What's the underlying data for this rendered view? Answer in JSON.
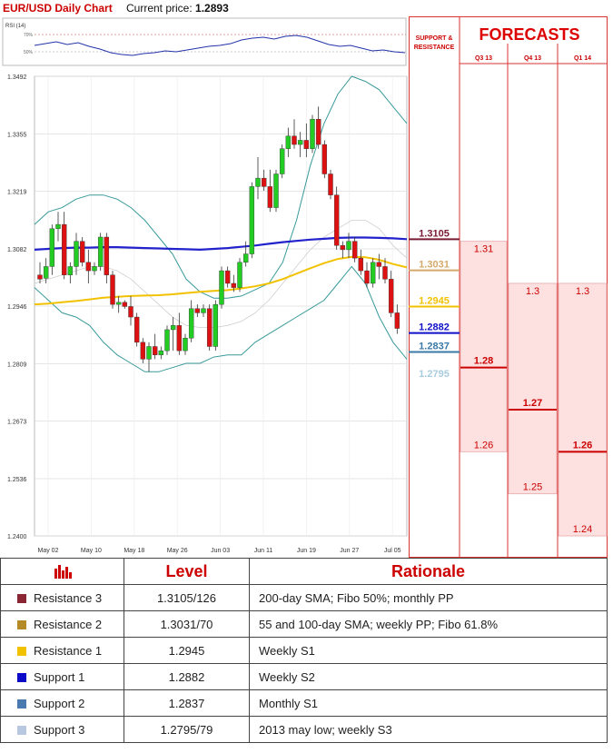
{
  "header": {
    "title": "EUR/USD Daily Chart",
    "current_price_label": "Current price:",
    "current_price": "1.2893"
  },
  "rsi": {
    "label": "RSI (14)",
    "ticks": [
      "70%",
      "50%"
    ]
  },
  "chart_data": [
    {
      "type": "line",
      "panel": "price",
      "title": "EUR/USD Daily Chart",
      "y_ticks": [
        "1.3492",
        "1.3355",
        "1.3219",
        "1.3082",
        "1.2946",
        "1.2809",
        "1.2673",
        "1.2536",
        "1.2400"
      ],
      "ylim": [
        1.24,
        1.3492
      ],
      "x_ticks": [
        "May 02",
        "May 10",
        "May 18",
        "May 26",
        "Jun 03",
        "Jun 11",
        "Jun 19",
        "Jun 27",
        "Jul 05"
      ],
      "grid": true,
      "series_shown": [
        "candlesticks",
        "Bollinger bands",
        "moving average (blue)",
        "moving average (yellow)"
      ],
      "candles_ohlc": [
        [
          1.302,
          1.305,
          1.3,
          1.301
        ],
        [
          1.3012,
          1.306,
          1.3,
          1.304
        ],
        [
          1.304,
          1.314,
          1.302,
          1.313
        ],
        [
          1.313,
          1.317,
          1.31,
          1.314
        ],
        [
          1.314,
          1.317,
          1.301,
          1.302
        ],
        [
          1.302,
          1.305,
          1.3,
          1.304
        ],
        [
          1.304,
          1.312,
          1.302,
          1.31
        ],
        [
          1.31,
          1.311,
          1.304,
          1.305
        ],
        [
          1.305,
          1.308,
          1.3,
          1.303
        ],
        [
          1.303,
          1.305,
          1.302,
          1.304
        ],
        [
          1.304,
          1.312,
          1.303,
          1.311
        ],
        [
          1.311,
          1.312,
          1.3,
          1.302
        ],
        [
          1.302,
          1.303,
          1.294,
          1.295
        ],
        [
          1.295,
          1.297,
          1.293,
          1.2955
        ],
        [
          1.2955,
          1.296,
          1.294,
          1.2945
        ],
        [
          1.2945,
          1.297,
          1.29,
          1.292
        ],
        [
          1.292,
          1.293,
          1.285,
          1.286
        ],
        [
          1.286,
          1.287,
          1.281,
          1.282
        ],
        [
          1.282,
          1.286,
          1.279,
          1.285
        ],
        [
          1.285,
          1.288,
          1.282,
          1.283
        ],
        [
          1.283,
          1.285,
          1.282,
          1.284
        ],
        [
          1.284,
          1.29,
          1.283,
          1.289
        ],
        [
          1.289,
          1.292,
          1.284,
          1.29
        ],
        [
          1.29,
          1.293,
          1.283,
          1.284
        ],
        [
          1.284,
          1.288,
          1.283,
          1.287
        ],
        [
          1.287,
          1.296,
          1.286,
          1.294
        ],
        [
          1.294,
          1.295,
          1.292,
          1.293
        ],
        [
          1.293,
          1.295,
          1.292,
          1.294
        ],
        [
          1.294,
          1.295,
          1.284,
          1.285
        ],
        [
          1.285,
          1.296,
          1.284,
          1.295
        ],
        [
          1.295,
          1.304,
          1.294,
          1.303
        ],
        [
          1.303,
          1.304,
          1.299,
          1.3
        ],
        [
          1.3,
          1.302,
          1.298,
          1.299
        ],
        [
          1.299,
          1.306,
          1.298,
          1.305
        ],
        [
          1.305,
          1.31,
          1.304,
          1.307
        ],
        [
          1.307,
          1.324,
          1.306,
          1.323
        ],
        [
          1.323,
          1.33,
          1.32,
          1.325
        ],
        [
          1.325,
          1.327,
          1.322,
          1.323
        ],
        [
          1.323,
          1.327,
          1.317,
          1.318
        ],
        [
          1.318,
          1.327,
          1.317,
          1.326
        ],
        [
          1.326,
          1.333,
          1.325,
          1.332
        ],
        [
          1.332,
          1.337,
          1.33,
          1.335
        ],
        [
          1.335,
          1.339,
          1.332,
          1.333
        ],
        [
          1.333,
          1.336,
          1.33,
          1.334
        ],
        [
          1.334,
          1.338,
          1.33,
          1.332
        ],
        [
          1.332,
          1.34,
          1.331,
          1.339
        ],
        [
          1.339,
          1.342,
          1.332,
          1.333
        ],
        [
          1.333,
          1.334,
          1.325,
          1.326
        ],
        [
          1.326,
          1.327,
          1.32,
          1.321
        ],
        [
          1.321,
          1.323,
          1.308,
          1.309
        ],
        [
          1.309,
          1.31,
          1.306,
          1.308
        ],
        [
          1.308,
          1.312,
          1.306,
          1.31
        ],
        [
          1.31,
          1.311,
          1.305,
          1.306
        ],
        [
          1.306,
          1.308,
          1.302,
          1.303
        ],
        [
          1.303,
          1.305,
          1.299,
          1.3
        ],
        [
          1.3,
          1.306,
          1.299,
          1.305
        ],
        [
          1.305,
          1.307,
          1.301,
          1.304
        ],
        [
          1.304,
          1.306,
          1.3,
          1.301
        ],
        [
          1.301,
          1.303,
          1.292,
          1.293
        ],
        [
          1.293,
          1.295,
          1.288,
          1.2893
        ]
      ],
      "bollinger_upper": [
        1.314,
        1.317,
        1.318,
        1.32,
        1.321,
        1.321,
        1.32,
        1.318,
        1.315,
        1.311,
        1.307,
        1.301,
        1.298,
        1.2965,
        1.2965,
        1.297,
        1.2985,
        1.3,
        1.305,
        1.315,
        1.328,
        1.338,
        1.345,
        1.3492,
        1.348,
        1.346,
        1.342,
        1.338
      ],
      "bollinger_middle": [
        1.3,
        1.301,
        1.302,
        1.303,
        1.304,
        1.304,
        1.303,
        1.301,
        1.298,
        1.295,
        1.292,
        1.29,
        1.2895,
        1.2895,
        1.29,
        1.291,
        1.293,
        1.296,
        1.3,
        1.304,
        1.308,
        1.311,
        1.313,
        1.315,
        1.315,
        1.313,
        1.309,
        1.306
      ],
      "bollinger_lower": [
        1.299,
        1.296,
        1.293,
        1.292,
        1.29,
        1.286,
        1.283,
        1.281,
        1.279,
        1.279,
        1.28,
        1.281,
        1.281,
        1.2825,
        1.283,
        1.283,
        1.286,
        1.288,
        1.29,
        1.292,
        1.294,
        1.296,
        1.3,
        1.304,
        1.3,
        1.292,
        1.286,
        1.282
      ],
      "ma_blue": [
        1.308,
        1.3082,
        1.3084,
        1.3085,
        1.3085,
        1.3086,
        1.3086,
        1.3085,
        1.3084,
        1.3083,
        1.3082,
        1.3081,
        1.308,
        1.3082,
        1.3084,
        1.3087,
        1.309,
        1.3094,
        1.3098,
        1.3101,
        1.3104,
        1.3106,
        1.3108,
        1.3109,
        1.3109,
        1.3108,
        1.3107,
        1.3105
      ],
      "ma_yellow": [
        1.295,
        1.2952,
        1.2955,
        1.2958,
        1.2962,
        1.2966,
        1.2968,
        1.297,
        1.2971,
        1.2972,
        1.2974,
        1.2977,
        1.298,
        1.2982,
        1.2984,
        1.2988,
        1.2993,
        1.3,
        1.301,
        1.3023,
        1.3036,
        1.3048,
        1.3058,
        1.3063,
        1.3062,
        1.3056,
        1.3046,
        1.3038
      ]
    },
    {
      "type": "bar",
      "panel": "forecasts",
      "title": "FORECASTS",
      "support_resistance_header": "SUPPORT & RESISTANCE",
      "levels": [
        {
          "label": "1.3105",
          "value": 1.3105,
          "color": "#7a1a32"
        },
        {
          "label": "1.3031",
          "value": 1.3031,
          "color": "#d4a96a"
        },
        {
          "label": "1.2945",
          "value": 1.2945,
          "color": "#f2c200"
        },
        {
          "label": "1.2882",
          "value": 1.2882,
          "color": "#1010c8"
        },
        {
          "label": "1.2837",
          "value": 1.2837,
          "color": "#3a7aa8"
        },
        {
          "label": "1.2795",
          "value": 1.2795,
          "color": "#a8cce0"
        }
      ],
      "columns": [
        {
          "label": "Q3 13",
          "high": 1.31,
          "median": 1.28,
          "low": 1.26,
          "high_label": "1.31",
          "median_label": "1.28",
          "low_label": "1.26"
        },
        {
          "label": "Q4 13",
          "high": 1.3,
          "median": 1.27,
          "low": 1.25,
          "high_label": "1.3",
          "median_label": "1.27",
          "low_label": "1.25"
        },
        {
          "label": "Q1 14",
          "high": 1.3,
          "median": 1.26,
          "low": 1.24,
          "high_label": "1.3",
          "median_label": "1.26",
          "low_label": "1.24"
        }
      ]
    }
  ],
  "table": {
    "headers": {
      "level": "Level",
      "rationale": "Rationale"
    },
    "rows": [
      {
        "name": "Resistance 3",
        "color": "#8b2635",
        "level": "1.3105/126",
        "rationale": "200-day SMA; Fibo 50%; monthly PP"
      },
      {
        "name": "Resistance 2",
        "color": "#b58b2a",
        "level": "1.3031/70",
        "rationale": "55 and 100-day SMA; weekly PP; Fibo 61.8%"
      },
      {
        "name": "Resistance 1",
        "color": "#f2c200",
        "level": "1.2945",
        "rationale": "Weekly S1"
      },
      {
        "name": "Support 1",
        "color": "#0a0ac8",
        "level": "1.2882",
        "rationale": "Weekly S2"
      },
      {
        "name": "Support 2",
        "color": "#4a7ab0",
        "level": "1.2837",
        "rationale": "Monthly S1"
      },
      {
        "name": "Support 3",
        "color": "#b8c8e0",
        "level": "1.2795/79",
        "rationale": "2013 may low; weekly S3"
      }
    ]
  }
}
